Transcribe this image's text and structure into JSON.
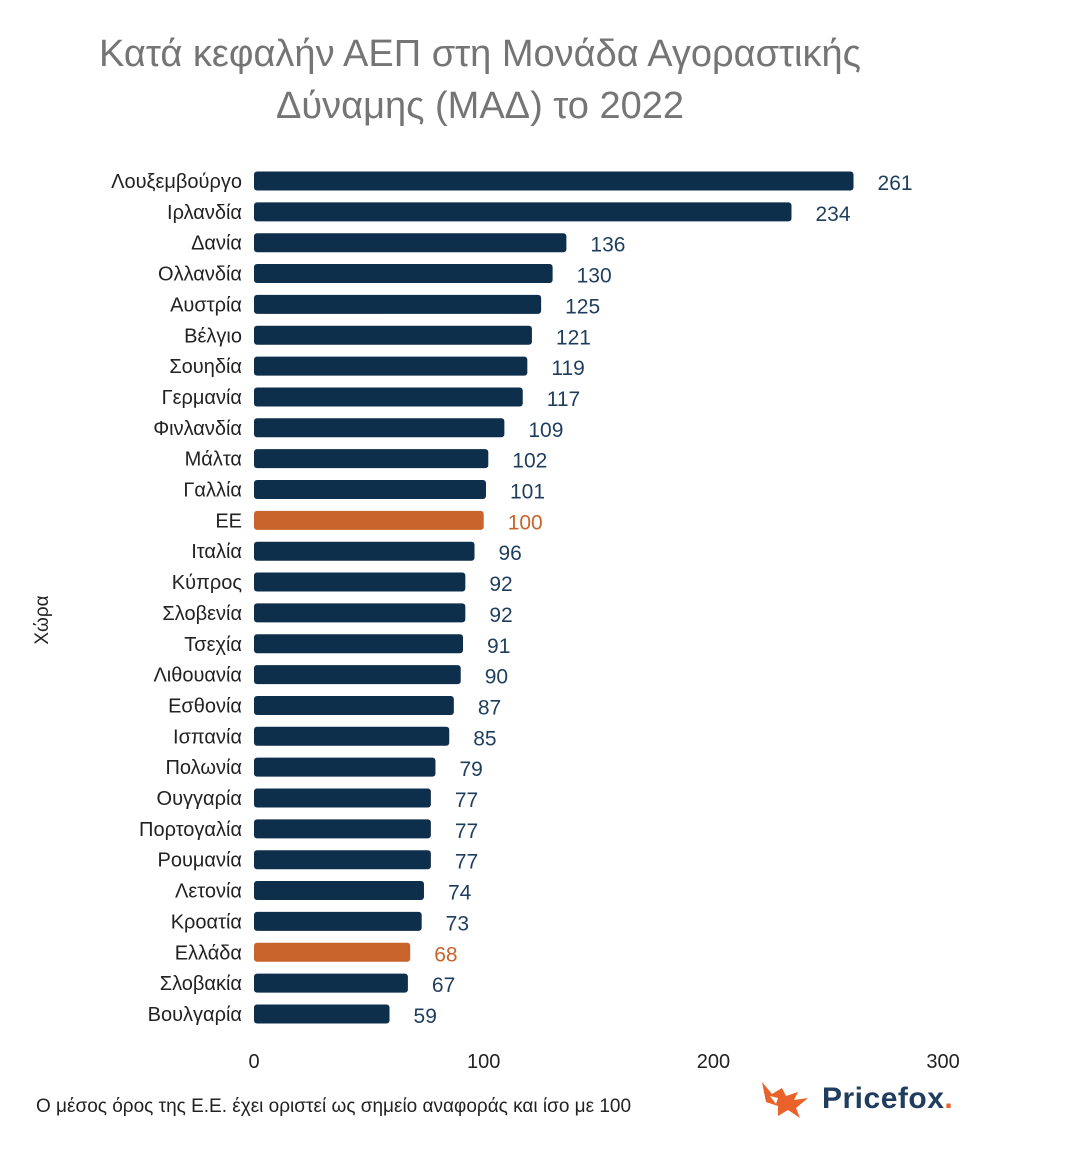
{
  "chart_data": {
    "type": "bar",
    "orientation": "horizontal",
    "title": "Κατά κεφαλήν ΑΕΠ στη Μονάδα Αγοραστικής Δύναμης (ΜΑΔ) το 2022",
    "ylabel": "Χώρα",
    "xlabel": "",
    "xlim": [
      0,
      300
    ],
    "x_ticks": [
      0,
      100,
      200,
      300
    ],
    "grid": false,
    "categories": [
      "Λουξεμβούργο",
      "Ιρλανδία",
      "Δανία",
      "Ολλανδία",
      "Αυστρία",
      "Βέλγιο",
      "Σουηδία",
      "Γερμανία",
      "Φινλανδία",
      "Μάλτα",
      "Γαλλία",
      "ΕΕ",
      "Ιταλία",
      "Κύπρος",
      "Σλοβενία",
      "Τσεχία",
      "Λιθουανία",
      "Εσθονία",
      "Ισπανία",
      "Πολωνία",
      "Ουγγαρία",
      "Πορτογαλία",
      "Ρουμανία",
      "Λετονία",
      "Κροατία",
      "Ελλάδα",
      "Σλοβακία",
      "Βουλγαρία"
    ],
    "values": [
      261,
      234,
      136,
      130,
      125,
      121,
      119,
      117,
      109,
      102,
      101,
      100,
      96,
      92,
      92,
      91,
      90,
      87,
      85,
      79,
      77,
      77,
      77,
      74,
      73,
      68,
      67,
      59
    ],
    "highlighted": [
      "ΕΕ",
      "Ελλάδα"
    ],
    "colors": {
      "bar": "#0e2f4b",
      "highlight": "#c8642b",
      "label": "#1f3e5e",
      "highlight_label": "#c8642b"
    }
  },
  "footnote": "Ο μέσος όρος της Ε.Ε. έχει οριστεί ως σημείο αναφοράς και ίσο με 100",
  "logo": {
    "text": "Pricefox",
    "dot": ".",
    "icon": "fox-icon"
  }
}
